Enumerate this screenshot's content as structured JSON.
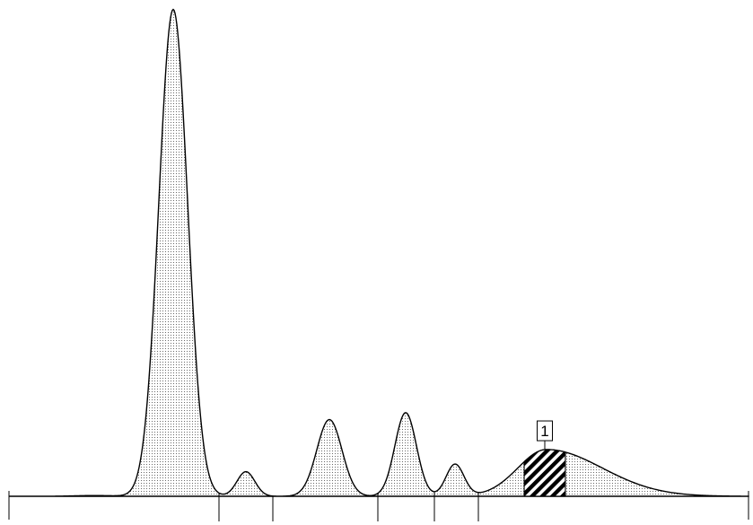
{
  "chart_data": {
    "type": "area",
    "title": "",
    "xlabel": "",
    "ylabel": "",
    "xlim": [
      0,
      839
    ],
    "ylim": [
      0,
      100
    ],
    "grid": false,
    "legend": "none",
    "baseline_ticks": false,
    "peaks": [
      {
        "center": 193,
        "height": 99,
        "width": 16
      },
      {
        "center": 274,
        "height": 5,
        "width": 10
      },
      {
        "center": 367,
        "height": 15.6,
        "width": 14
      },
      {
        "center": 452,
        "height": 17,
        "width": 12
      },
      {
        "center": 507,
        "height": 6.5,
        "width": 10
      },
      {
        "center": 609,
        "height": 9.5,
        "width_left": 32,
        "width_right": 62
      }
    ],
    "fraction_boundaries": [
      244,
      304,
      421,
      484,
      533
    ],
    "highlighted_fraction": {
      "label": "1",
      "x_start": 584,
      "x_end": 630
    },
    "colors": {
      "curve": "#000000",
      "fill_pattern": "dotted",
      "highlight_pattern": "hatched"
    }
  }
}
